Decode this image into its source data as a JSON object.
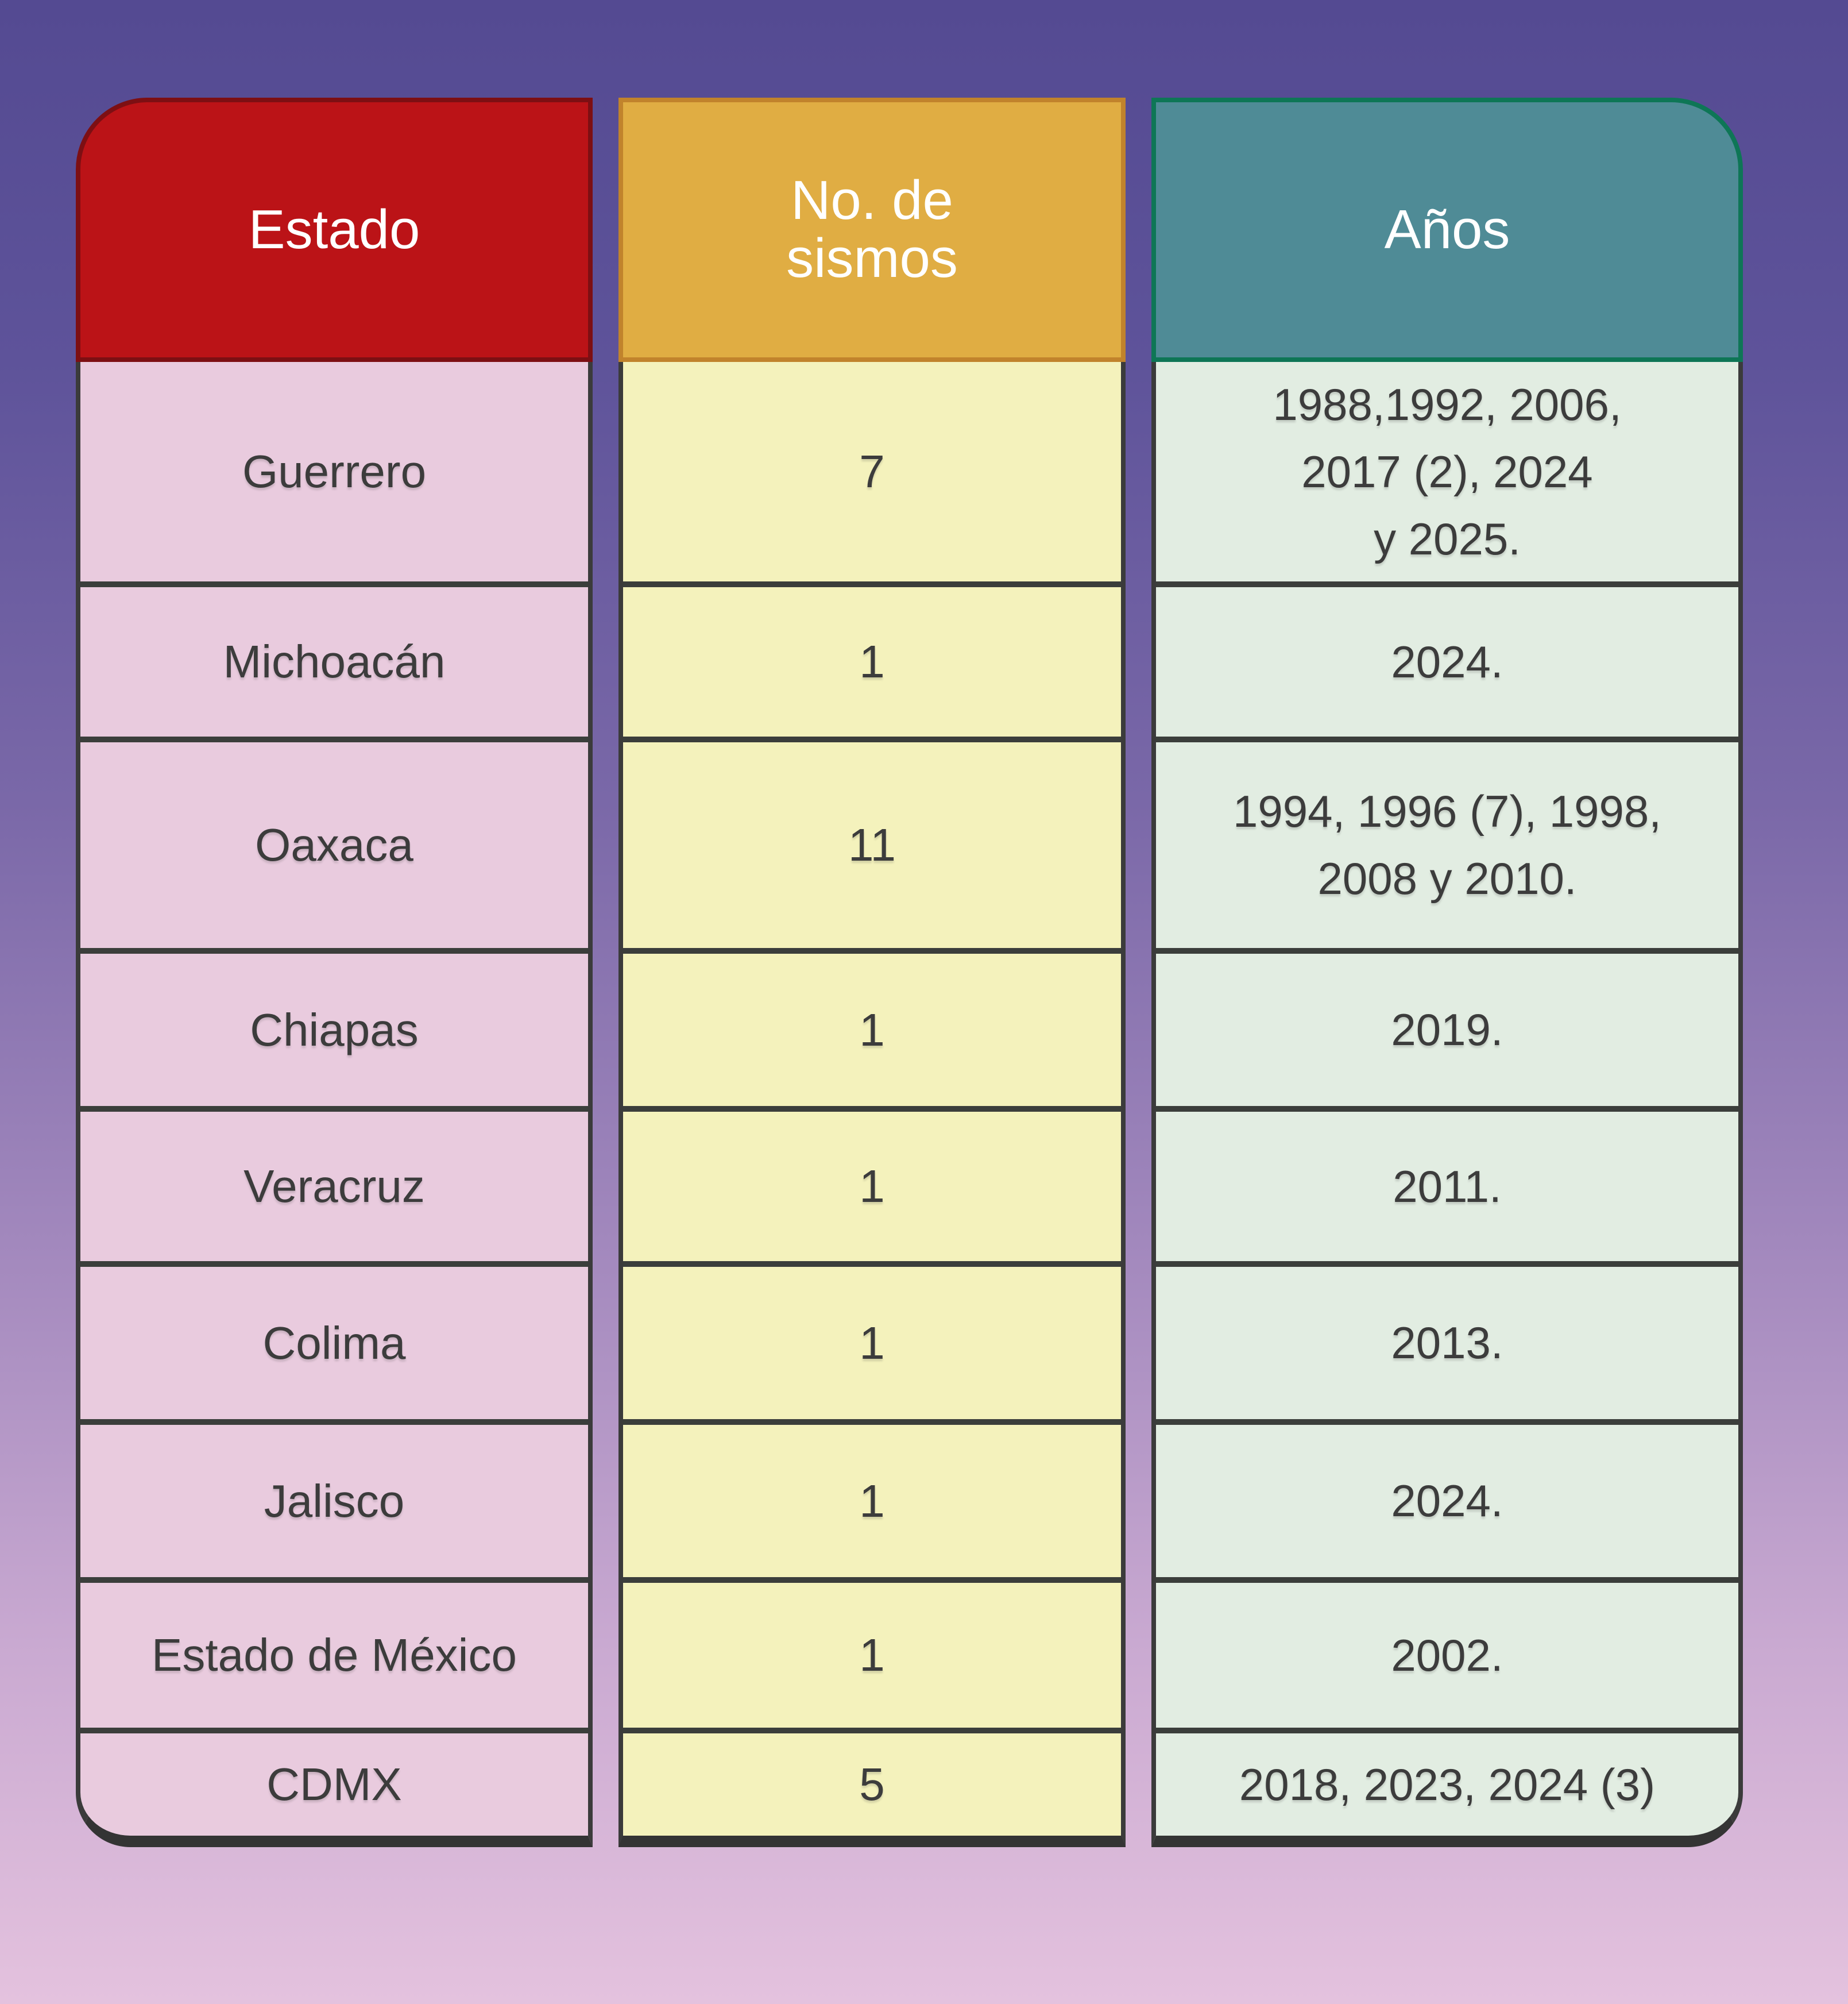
{
  "colors": {
    "background_top": "#544a92",
    "background_bottom": "#e4c2de",
    "estado_header_bg": "#bb1317",
    "estado_header_border": "#7d0f13",
    "estado_body_bg": "#e9cbde",
    "sismos_header_bg": "#e0ad43",
    "sismos_header_border": "#c1832c",
    "sismos_body_bg": "#f4f2bc",
    "anos_header_bg": "#4f8b96",
    "anos_header_border": "#0e7656",
    "anos_body_bg": "#e2ede2",
    "cell_text": "#3c3c3c",
    "header_text": "#ffffff",
    "grid_line": "#3b3b3b"
  },
  "table": {
    "columns": [
      {
        "id": "estado",
        "header": "Estado",
        "header_display": "Estado"
      },
      {
        "id": "sismos",
        "header": "No. de sismos",
        "header_display": "No. de\nsismos"
      },
      {
        "id": "anos",
        "header": "Años",
        "header_display": "Años"
      }
    ],
    "rows": [
      {
        "estado": "Guerrero",
        "sismos": "7",
        "anos": "1988,1992, 2006,\n2017 (2), 2024\ny 2025."
      },
      {
        "estado": "Michoacán",
        "sismos": "1",
        "anos": "2024."
      },
      {
        "estado": "Oaxaca",
        "sismos": "11",
        "anos": "1994, 1996 (7), 1998,\n2008 y 2010."
      },
      {
        "estado": "Chiapas",
        "sismos": "1",
        "anos": "2019."
      },
      {
        "estado": "Veracruz",
        "sismos": "1",
        "anos": "2011."
      },
      {
        "estado": "Colima",
        "sismos": "1",
        "anos": "2013."
      },
      {
        "estado": "Jalisco",
        "sismos": "1",
        "anos": "2024."
      },
      {
        "estado": "Estado de México",
        "sismos": "1",
        "anos": "2002."
      },
      {
        "estado": "CDMX",
        "sismos": "5",
        "anos": "2018, 2023, 2024 (3)"
      }
    ]
  },
  "chart_data": {
    "type": "table",
    "title": "",
    "columns": [
      "Estado",
      "No. de sismos",
      "Años"
    ],
    "rows": [
      [
        "Guerrero",
        7,
        "1988,1992, 2006, 2017 (2), 2024 y 2025."
      ],
      [
        "Michoacán",
        1,
        "2024."
      ],
      [
        "Oaxaca",
        11,
        "1994, 1996 (7), 1998, 2008 y 2010."
      ],
      [
        "Chiapas",
        1,
        "2019."
      ],
      [
        "Veracruz",
        1,
        "2011."
      ],
      [
        "Colima",
        1,
        "2013."
      ],
      [
        "Jalisco",
        1,
        "2024."
      ],
      [
        "Estado de México",
        1,
        "2002."
      ],
      [
        "CDMX",
        5,
        "2018, 2023, 2024 (3)"
      ]
    ]
  }
}
